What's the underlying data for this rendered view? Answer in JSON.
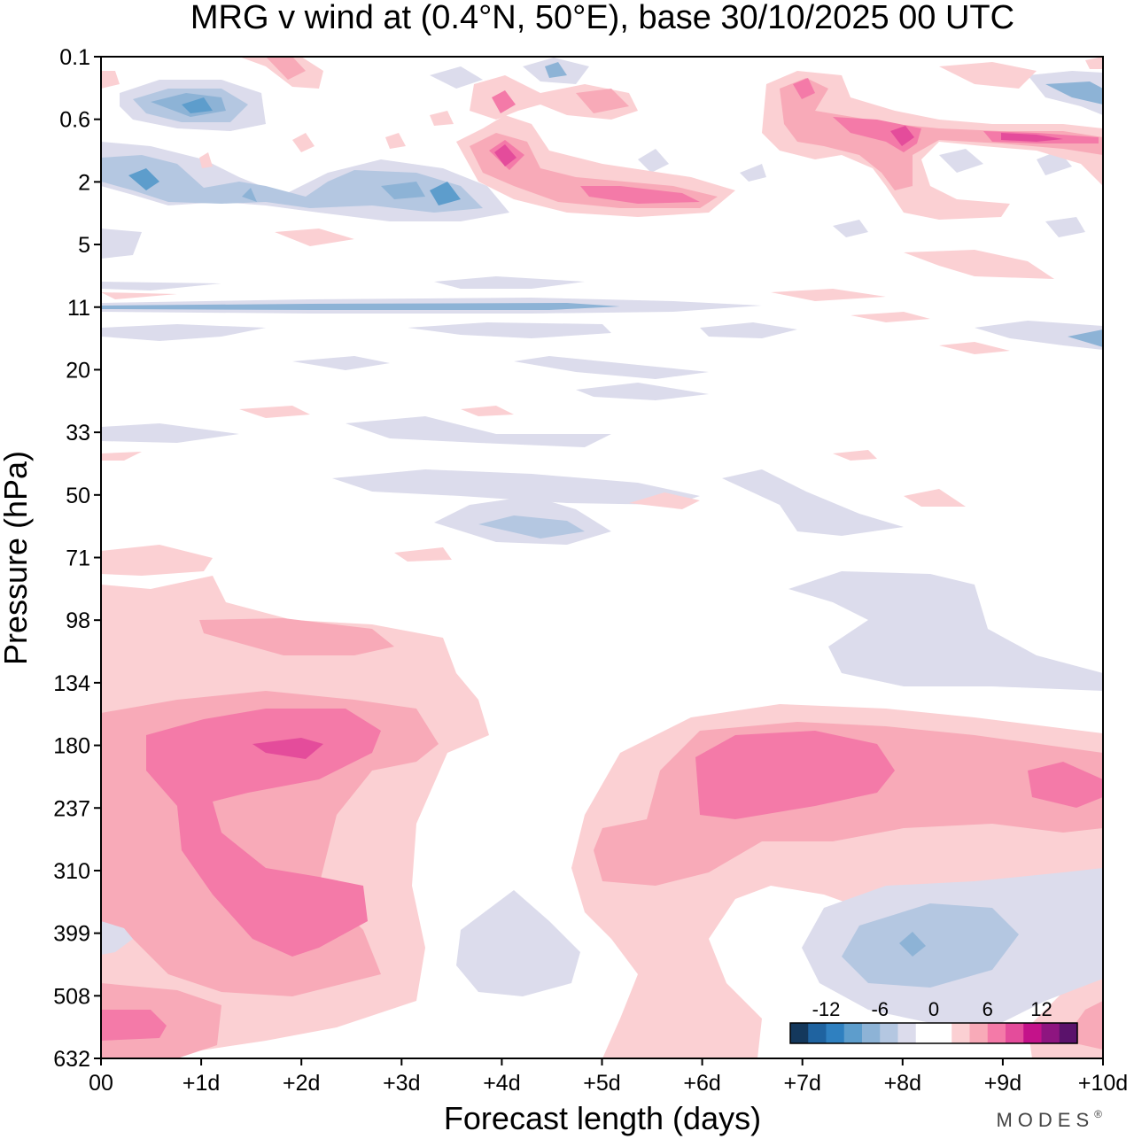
{
  "chart_data": {
    "type": "heatmap",
    "title": "MRG v wind at (0.4°N, 50°E),  base 30/10/2025  00 UTC",
    "xlabel": "Forecast length (days)",
    "ylabel": "Pressure (hPa)",
    "x_ticks": [
      "00",
      "+1d",
      "+2d",
      "+3d",
      "+4d",
      "+5d",
      "+6d",
      "+7d",
      "+8d",
      "+9d",
      "+10d"
    ],
    "xlim": [
      0,
      10
    ],
    "y_ticks": [
      "0.1",
      "0.6",
      "2",
      "5",
      "11",
      "20",
      "33",
      "50",
      "71",
      "98",
      "134",
      "180",
      "237",
      "310",
      "399",
      "508",
      "632"
    ],
    "y_scale": "irregular pressure levels, top to bottom",
    "colorbar": {
      "tick_labels": [
        "-12",
        "-6",
        "0",
        "6",
        "12"
      ],
      "levels": [
        -16,
        -14,
        -12,
        -10,
        -8,
        -6,
        -4,
        -2,
        0,
        2,
        4,
        6,
        8,
        10,
        12,
        14,
        16
      ],
      "colors": [
        "#14385c",
        "#1f63a0",
        "#2f80c0",
        "#5d9dcc",
        "#8db3d6",
        "#b4c7e1",
        "#dcdcec",
        "#ffffff",
        "#ffffff",
        "#fbd0d3",
        "#f8aab8",
        "#f47aa8",
        "#e44c9b",
        "#c4128a",
        "#8e1580",
        "#5a126b"
      ]
    },
    "features": [
      {
        "label": "positive maximum",
        "x_day": 2.0,
        "pressure_hPa": 180,
        "value": 11
      },
      {
        "label": "positive",
        "x_day": 6.5,
        "pressure_hPa": 200,
        "value": 6
      },
      {
        "label": "positive",
        "x_day": 9.6,
        "pressure_hPa": 220,
        "value": 8
      },
      {
        "label": "positive",
        "x_day": 2.0,
        "pressure_hPa": 330,
        "value": 7
      },
      {
        "label": "negative minimum",
        "x_day": 8.0,
        "pressure_hPa": 400,
        "value": -8
      },
      {
        "label": "negative",
        "x_day": 0.5,
        "pressure_hPa": 2,
        "value": -9
      },
      {
        "label": "negative",
        "x_day": 3.5,
        "pressure_hPa": 2.5,
        "value": -8
      },
      {
        "label": "negative",
        "x_day": 1.0,
        "pressure_hPa": 0.4,
        "value": -9
      },
      {
        "label": "positive",
        "x_day": 4.0,
        "pressure_hPa": 1.3,
        "value": 10
      },
      {
        "label": "positive",
        "x_day": 8.0,
        "pressure_hPa": 1.0,
        "value": 9
      }
    ]
  },
  "brand": "MODES",
  "brand_mark": "®"
}
